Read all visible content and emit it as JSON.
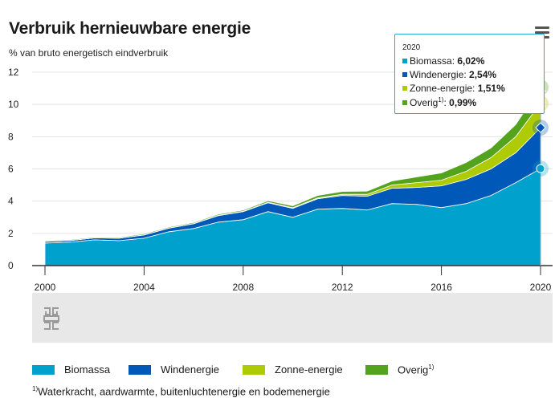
{
  "title": "Verbruik hernieuwbare energie",
  "subtitle": "% van bruto energetisch eindverbruik",
  "menu": {
    "icon": "hamburger-menu-icon"
  },
  "logo": {
    "icon": "cbs-logo-icon"
  },
  "tooltip": {
    "year": "2020",
    "rows": [
      {
        "label": "Biomassa: ",
        "value": "6,02%",
        "color": "#00a1cd"
      },
      {
        "label": "Windenergie: ",
        "value": "2,54%",
        "color": "#0058b8"
      },
      {
        "label": "Zonne-energie: ",
        "value": "1,51%",
        "color": "#afcb05"
      },
      {
        "label": "Overig",
        "sup": "1)",
        "label_suffix": ": ",
        "value": "0,99%",
        "color": "#53a31d"
      }
    ]
  },
  "legend": [
    {
      "label": "Biomassa",
      "color": "#00a1cd"
    },
    {
      "label": "Windenergie",
      "color": "#0058b8"
    },
    {
      "label": "Zonne-energie",
      "color": "#afcb05"
    },
    {
      "label": "Overig",
      "sup": "1)",
      "color": "#53a31d"
    }
  ],
  "footnote": {
    "sup": "1)",
    "text": "Waterkracht, aardwarmte, buitenluchtenergie en bodemenergie"
  },
  "chart_data": {
    "type": "area",
    "stacked": true,
    "title": "Verbruik hernieuwbare energie",
    "subtitle": "% van bruto energetisch eindverbruik",
    "x": [
      2000,
      2001,
      2002,
      2003,
      2004,
      2005,
      2006,
      2007,
      2008,
      2009,
      2010,
      2011,
      2012,
      2013,
      2014,
      2015,
      2016,
      2017,
      2018,
      2019,
      2020
    ],
    "xlim": [
      2000,
      2020
    ],
    "ylim": [
      0,
      12
    ],
    "x_ticks": [
      "2000",
      "2004",
      "2008",
      "2012",
      "2016",
      "2020"
    ],
    "y_ticks": [
      "0",
      "2",
      "4",
      "6",
      "8",
      "10",
      "12"
    ],
    "grid": "horizontal",
    "legend_position": "bottom",
    "series": [
      {
        "name": "Biomassa",
        "color": "#00a1cd",
        "values": [
          1.4,
          1.45,
          1.6,
          1.55,
          1.7,
          2.1,
          2.3,
          2.7,
          2.85,
          3.35,
          3.0,
          3.5,
          3.55,
          3.45,
          3.85,
          3.8,
          3.6,
          3.85,
          4.35,
          5.15,
          6.02
        ]
      },
      {
        "name": "Windenergie",
        "color": "#0058b8",
        "values": [
          0.1,
          0.1,
          0.12,
          0.15,
          0.2,
          0.22,
          0.3,
          0.4,
          0.5,
          0.55,
          0.55,
          0.65,
          0.8,
          0.85,
          0.95,
          1.05,
          1.35,
          1.5,
          1.65,
          1.85,
          2.54
        ]
      },
      {
        "name": "Zonne-energie",
        "color": "#afcb05",
        "values": [
          0.0,
          0.0,
          0.0,
          0.0,
          0.01,
          0.01,
          0.01,
          0.02,
          0.02,
          0.03,
          0.04,
          0.05,
          0.07,
          0.12,
          0.2,
          0.3,
          0.35,
          0.5,
          0.7,
          1.0,
          1.51
        ]
      },
      {
        "name": "Overig",
        "color": "#53a31d",
        "values": [
          0.05,
          0.05,
          0.05,
          0.05,
          0.06,
          0.06,
          0.06,
          0.07,
          0.07,
          0.1,
          0.12,
          0.15,
          0.18,
          0.2,
          0.25,
          0.35,
          0.45,
          0.55,
          0.6,
          0.75,
          0.99
        ]
      }
    ],
    "highlight": {
      "x": 2020,
      "values": [
        "6,02%",
        "2,54%",
        "1,51%",
        "0,99%"
      ]
    }
  }
}
